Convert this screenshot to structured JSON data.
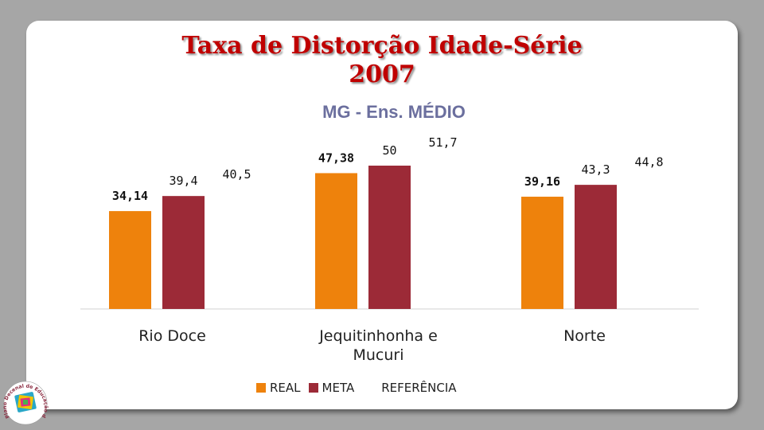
{
  "header": {
    "title_line1": "Taxa de Distorção Idade-Série",
    "title_line2": "2007",
    "subtitle": "MG - Ens. MÉDIO"
  },
  "colors": {
    "real": "#ee820c",
    "meta": "#9c2a37",
    "background": "#a6a6a6"
  },
  "chart_data": {
    "type": "bar",
    "title": "",
    "categories": [
      [
        "Rio Doce"
      ],
      [
        "Jequitinhonha e",
        "Mucuri"
      ],
      [
        "Norte"
      ]
    ],
    "ylim": [
      0,
      60
    ],
    "grid": false,
    "legend_position": "bottom",
    "series": [
      {
        "name": "REAL",
        "values": [
          34.14,
          47.38,
          39.16
        ],
        "labels": [
          "34,14",
          "47,38",
          "39,16"
        ],
        "color": "#ee820c",
        "bold_labels": true
      },
      {
        "name": "META",
        "values": [
          39.4,
          50,
          43.3
        ],
        "labels": [
          "39,4",
          "50",
          "43,3"
        ],
        "color": "#9c2a37",
        "bold_labels": false
      },
      {
        "name": "REFERÊNCIA",
        "values": [
          40.5,
          51.7,
          44.8
        ],
        "labels": [
          "40,5",
          "51,7",
          "44,8"
        ],
        "color": "none",
        "bold_labels": false
      }
    ]
  },
  "logo": {
    "text": "Plano Decenal de Educação de Minas Gerais"
  }
}
